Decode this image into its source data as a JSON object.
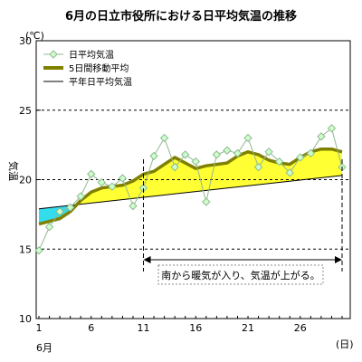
{
  "chart_data": {
    "type": "line",
    "title": "6月の日立市役所における日平均気温の推移",
    "ylabel": "気温",
    "yunit": "(℃)",
    "xunit": "(日)",
    "month_label": "6月",
    "ylim": [
      10,
      30
    ],
    "yticks": [
      10,
      15,
      20,
      25,
      30
    ],
    "xlim": [
      1,
      30
    ],
    "xticks": [
      1,
      6,
      11,
      16,
      21,
      26
    ],
    "xtick_labels": [
      "1",
      "6",
      "11",
      "16",
      "21",
      "26"
    ],
    "dashed_gridlines": [
      15,
      20,
      25
    ],
    "legend_placement": "top-left",
    "series": [
      {
        "name": "日平均気温",
        "color": "#90b890",
        "x": [
          1,
          2,
          3,
          4,
          5,
          6,
          7,
          8,
          9,
          10,
          11,
          12,
          13,
          14,
          15,
          16,
          17,
          18,
          19,
          20,
          21,
          22,
          23,
          24,
          25,
          26,
          27,
          28,
          29,
          30
        ],
        "values": [
          14.9,
          16.6,
          17.7,
          18.0,
          18.8,
          20.4,
          19.8,
          19.5,
          20.1,
          18.1,
          19.4,
          21.7,
          23.0,
          20.9,
          21.8,
          21.3,
          18.4,
          21.8,
          22.1,
          21.9,
          23.0,
          20.9,
          22.0,
          21.3,
          20.5,
          21.6,
          21.9,
          23.1,
          23.7,
          20.9
        ]
      },
      {
        "name": "5日間移動平均",
        "color": "#808000",
        "x": [
          1,
          2,
          3,
          4,
          5,
          6,
          7,
          8,
          9,
          10,
          11,
          12,
          13,
          14,
          15,
          16,
          17,
          18,
          19,
          20,
          21,
          22,
          23,
          24,
          25,
          26,
          27,
          28,
          29,
          30
        ],
        "values": [
          16.8,
          17.0,
          17.2,
          17.7,
          18.5,
          19.1,
          19.4,
          19.5,
          19.6,
          19.9,
          20.4,
          20.6,
          21.1,
          21.6,
          21.2,
          20.8,
          21.0,
          21.1,
          21.2,
          21.7,
          22.0,
          21.8,
          21.4,
          21.2,
          21.1,
          21.6,
          22.0,
          22.2,
          22.2,
          22.0
        ]
      },
      {
        "name": "平年日平均気温",
        "color": "#000000",
        "x": [
          1,
          30
        ],
        "values": [
          17.9,
          20.3
        ]
      }
    ],
    "annotations": [
      {
        "text": "南から暖気が入り、気温が上がる。",
        "x_range": [
          11,
          30
        ]
      }
    ]
  },
  "colors": {
    "above_normal_fill": "#ffff33",
    "below_normal_fill": "#33ddee",
    "marker_fill": "#ccffcc"
  }
}
